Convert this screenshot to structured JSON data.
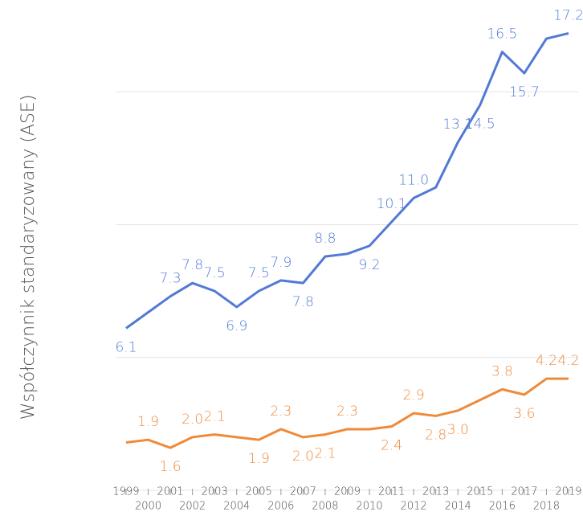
{
  "chart_data": {
    "type": "line",
    "y_label": "Współczynnik standaryzowany (ASE)",
    "categories": [
      "1999",
      "2000",
      "2001",
      "2002",
      "2003",
      "2004",
      "2005",
      "2006",
      "2007",
      "2008",
      "2009",
      "2010",
      "2011",
      "2012",
      "2013",
      "2014",
      "2015",
      "2016",
      "2017",
      "2018",
      "2019"
    ],
    "series": [
      {
        "color": "#5279d6",
        "values": [
          6.1,
          6.7,
          7.3,
          7.8,
          7.5,
          6.9,
          7.5,
          7.9,
          7.8,
          8.8,
          8.9,
          9.2,
          10.1,
          11.0,
          11.4,
          13.1,
          14.5,
          16.5,
          15.7,
          17.0,
          17.2
        ],
        "value_labels": [
          "6.1",
          null,
          "7.3",
          "7.8",
          "7.5",
          "6.9",
          "7.5",
          "7.9",
          "7.8",
          "8.8",
          null,
          "9.2",
          "10.1",
          "11.0",
          null,
          "13.1",
          "14.5",
          "16.5",
          "15.7",
          null,
          "17.2"
        ]
      },
      {
        "color": "#ee8a3a",
        "values": [
          1.8,
          1.9,
          1.6,
          2.0,
          2.1,
          2.0,
          1.9,
          2.3,
          2.0,
          2.1,
          2.3,
          2.3,
          2.4,
          2.9,
          2.8,
          3.0,
          3.4,
          3.8,
          3.6,
          4.2,
          4.2
        ],
        "value_labels": [
          null,
          "1.9",
          "1.6",
          "2.0",
          "2.1",
          null,
          "1.9",
          "2.3",
          "2.0",
          "2.1",
          "2.3",
          null,
          "2.4",
          "2.9",
          "2.8",
          "3.0",
          null,
          "3.8",
          "3.6",
          "4.2",
          "4.2"
        ]
      }
    ],
    "ylim": [
      0,
      18
    ],
    "yticks": [
      0,
      5,
      10,
      15
    ],
    "grid": true
  }
}
